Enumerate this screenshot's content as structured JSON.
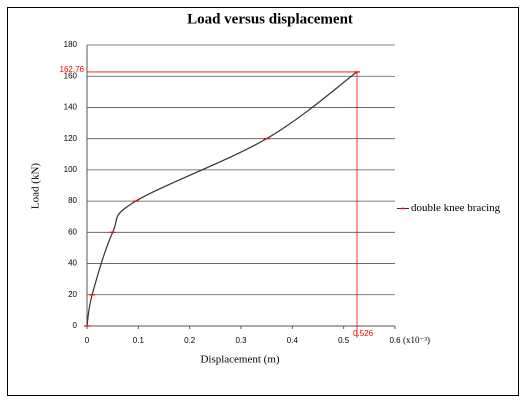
{
  "chart_data": {
    "type": "line",
    "title": "Load versus displacement",
    "x_label": "Displacement (m)",
    "x_unit_label": "(x10⁻³)",
    "y_label": "Load (kN)",
    "x": [
      0,
      0.01,
      0.05,
      0.095,
      0.35,
      0.526
    ],
    "series": [
      {
        "name": "double knee bracing",
        "color": "#333333",
        "marker_color": "#ff0000",
        "values": [
          0,
          20,
          60,
          80,
          120,
          162.76
        ]
      }
    ],
    "xlim": [
      0,
      0.6
    ],
    "xticks": [
      0,
      0.1,
      0.2,
      0.3,
      0.4,
      0.5,
      0.6
    ],
    "ylim": [
      0,
      180
    ],
    "yticks": [
      0,
      20,
      40,
      60,
      80,
      100,
      120,
      140,
      160,
      180
    ],
    "grid": true,
    "legend": "right",
    "annotations": {
      "y_label": "162.76",
      "x_label": "0.526",
      "color": "#ff0000"
    }
  }
}
